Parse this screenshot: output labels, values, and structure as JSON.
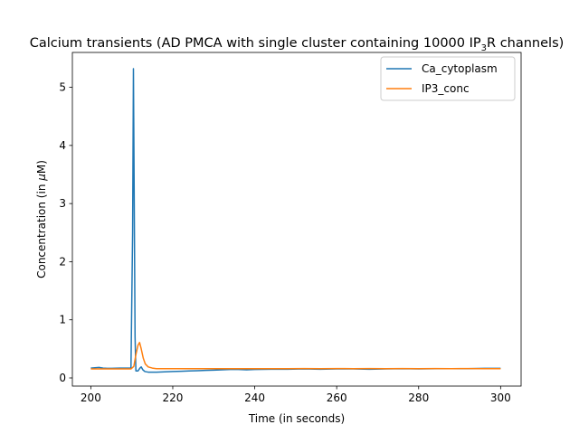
{
  "chart_data": {
    "type": "line",
    "title": {
      "before": "Calcium transients (AD PMCA with single cluster containing 10000 IP",
      "sub": "3",
      "after": "R channels)"
    },
    "xlabel": "Time (in seconds)",
    "ylabel": {
      "before": "Concentration (in ",
      "mu": "μ",
      "after": "M)"
    },
    "xlim": [
      195.5,
      305
    ],
    "ylim": [
      -0.14,
      5.6
    ],
    "xticks": [
      200,
      220,
      240,
      260,
      280,
      300
    ],
    "yticks": [
      0,
      1,
      2,
      3,
      4,
      5
    ],
    "grid": false,
    "legend_position": "top-right",
    "series": [
      {
        "name": "Ca_cytoplasm",
        "color": "#1f77b4",
        "points": [
          [
            200,
            0.17
          ],
          [
            201,
            0.175
          ],
          [
            202,
            0.18
          ],
          [
            203,
            0.17
          ],
          [
            204,
            0.165
          ],
          [
            205,
            0.165
          ],
          [
            206,
            0.168
          ],
          [
            207,
            0.17
          ],
          [
            208,
            0.17
          ],
          [
            209,
            0.17
          ],
          [
            209.8,
            0.17
          ],
          [
            210.2,
            2.5
          ],
          [
            210.4,
            5.32
          ],
          [
            210.6,
            3.0
          ],
          [
            210.8,
            0.7
          ],
          [
            211.0,
            0.12
          ],
          [
            211.5,
            0.12
          ],
          [
            212.0,
            0.17
          ],
          [
            212.3,
            0.19
          ],
          [
            212.7,
            0.14
          ],
          [
            213.2,
            0.11
          ],
          [
            214,
            0.1
          ],
          [
            216,
            0.1
          ],
          [
            218,
            0.105
          ],
          [
            220,
            0.11
          ],
          [
            222,
            0.115
          ],
          [
            224,
            0.12
          ],
          [
            226,
            0.125
          ],
          [
            228,
            0.13
          ],
          [
            230,
            0.135
          ],
          [
            232,
            0.14
          ],
          [
            234,
            0.145
          ],
          [
            236,
            0.145
          ],
          [
            238,
            0.14
          ],
          [
            240,
            0.145
          ],
          [
            244,
            0.15
          ],
          [
            248,
            0.15
          ],
          [
            252,
            0.155
          ],
          [
            256,
            0.15
          ],
          [
            260,
            0.155
          ],
          [
            264,
            0.155
          ],
          [
            268,
            0.15
          ],
          [
            272,
            0.155
          ],
          [
            276,
            0.16
          ],
          [
            280,
            0.155
          ],
          [
            284,
            0.16
          ],
          [
            288,
            0.16
          ],
          [
            292,
            0.16
          ],
          [
            296,
            0.165
          ],
          [
            300,
            0.165
          ]
        ]
      },
      {
        "name": "IP3_conc",
        "color": "#ff7f0e",
        "points": [
          [
            200,
            0.155
          ],
          [
            202,
            0.155
          ],
          [
            204,
            0.155
          ],
          [
            206,
            0.155
          ],
          [
            208,
            0.155
          ],
          [
            209.8,
            0.155
          ],
          [
            210.5,
            0.2
          ],
          [
            211,
            0.4
          ],
          [
            211.5,
            0.56
          ],
          [
            211.9,
            0.61
          ],
          [
            212.3,
            0.5
          ],
          [
            212.8,
            0.34
          ],
          [
            213.3,
            0.24
          ],
          [
            214,
            0.19
          ],
          [
            215,
            0.17
          ],
          [
            216,
            0.16
          ],
          [
            218,
            0.16
          ],
          [
            220,
            0.16
          ],
          [
            224,
            0.16
          ],
          [
            228,
            0.16
          ],
          [
            232,
            0.16
          ],
          [
            236,
            0.16
          ],
          [
            240,
            0.16
          ],
          [
            244,
            0.16
          ],
          [
            248,
            0.16
          ],
          [
            252,
            0.162
          ],
          [
            256,
            0.16
          ],
          [
            260,
            0.162
          ],
          [
            264,
            0.16
          ],
          [
            268,
            0.162
          ],
          [
            272,
            0.16
          ],
          [
            276,
            0.162
          ],
          [
            280,
            0.16
          ],
          [
            284,
            0.162
          ],
          [
            288,
            0.16
          ],
          [
            292,
            0.162
          ],
          [
            296,
            0.16
          ],
          [
            300,
            0.16
          ]
        ]
      }
    ]
  }
}
